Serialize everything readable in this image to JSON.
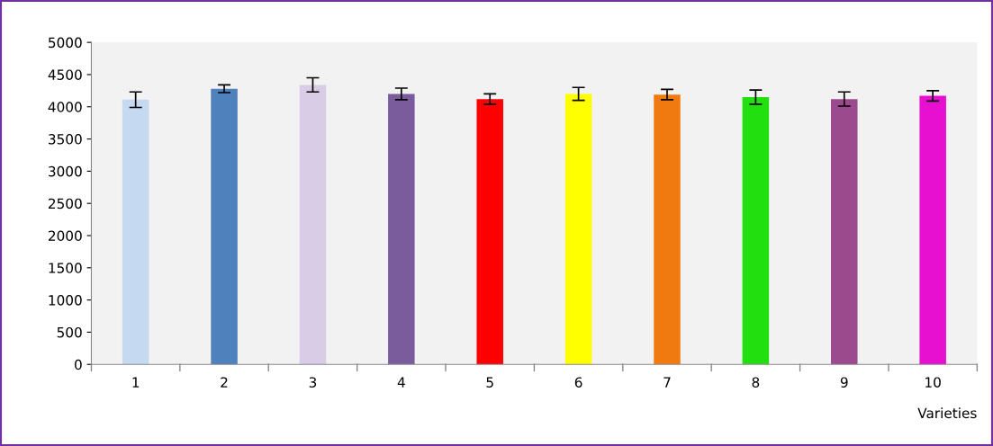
{
  "chart_data": {
    "type": "bar",
    "xlabel": "Varieties",
    "categories": [
      "1",
      "2",
      "3",
      "4",
      "5",
      "6",
      "7",
      "8",
      "9",
      "10"
    ],
    "values": [
      4110,
      4280,
      4340,
      4200,
      4120,
      4200,
      4190,
      4150,
      4120,
      4170
    ],
    "errors": [
      120,
      60,
      110,
      90,
      80,
      100,
      80,
      110,
      110,
      80
    ],
    "colors": [
      "#c5d9f1",
      "#4f81bd",
      "#d9cce6",
      "#7a5c9c",
      "#ff0000",
      "#ffff00",
      "#f07a10",
      "#22e010",
      "#9b4a8e",
      "#e810d0"
    ],
    "ylim": [
      0,
      5000
    ],
    "yticks": [
      0,
      500,
      1000,
      1500,
      2000,
      2500,
      3000,
      3500,
      4000,
      4500,
      5000
    ],
    "grid": false,
    "legend": false
  }
}
